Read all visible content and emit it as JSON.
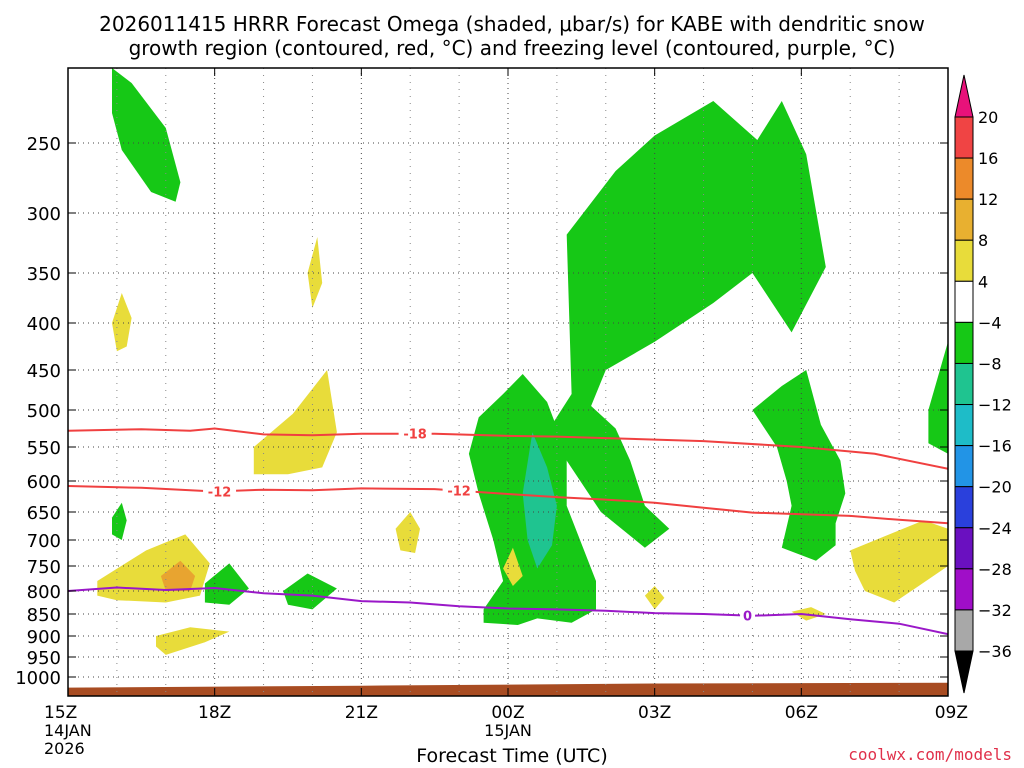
{
  "title_line1": "2026011415 HRRR Forecast Omega (shaded, μbar/s) for KABE with dendritic snow",
  "title_line2": "growth region (contoured, red, °C) and freezing level (contoured, purple, °C)",
  "credit": "coolwx.com/models",
  "chart_data": {
    "type": "time-height cross section (filled contour + line contours)",
    "xlabel": "Forecast Time (UTC)",
    "x_ticks": [
      {
        "hour": 0,
        "label": "15Z",
        "sub1": "14JAN",
        "sub2": "2026"
      },
      {
        "hour": 3,
        "label": "18Z"
      },
      {
        "hour": 6,
        "label": "21Z"
      },
      {
        "hour": 9,
        "label": "00Z",
        "sub1": "15JAN"
      },
      {
        "hour": 12,
        "label": "03Z"
      },
      {
        "hour": 15,
        "label": "06Z"
      },
      {
        "hour": 18,
        "label": "09Z"
      }
    ],
    "xlim_hours": [
      0,
      18
    ],
    "y_scale": "pressure (log-like)",
    "ylim_hPa": [
      1050,
      200
    ],
    "y_ticks": [
      250,
      300,
      350,
      400,
      450,
      500,
      550,
      600,
      650,
      700,
      750,
      800,
      850,
      900,
      950,
      1000
    ],
    "grid": true,
    "colorbar": {
      "levels": [
        20,
        16,
        12,
        8,
        4,
        -4,
        -8,
        -12,
        -16,
        -20,
        -24,
        -28,
        -32,
        -36
      ],
      "colors": [
        "#e8d43a",
        "#e8b030",
        "#ec8a2a",
        "#ee4040",
        "#e61a7a",
        "#ffffff",
        "#16c816",
        "#1fc4a0",
        "#22b4d8",
        "#2a7ee8",
        "#2a40dc",
        "#7a10c8",
        "#a010c8",
        "#a8a8a8"
      ],
      "bins": [
        {
          "range": ">20",
          "color": "#e8127a"
        },
        {
          "range": "16-20",
          "color": "#f04444"
        },
        {
          "range": "12-16",
          "color": "#ec8a2a"
        },
        {
          "range": "8-12",
          "color": "#e8b030"
        },
        {
          "range": "4-8",
          "color": "#e8dc3a"
        },
        {
          "range": "-4-4",
          "color": "#ffffff"
        },
        {
          "range": "-8--4",
          "color": "#16c816"
        },
        {
          "range": "-12--8",
          "color": "#1fc490"
        },
        {
          "range": "-16--12",
          "color": "#1ebcc8"
        },
        {
          "range": "-20--16",
          "color": "#2294e6"
        },
        {
          "range": "-24--20",
          "color": "#2a40dc"
        },
        {
          "range": "-28--24",
          "color": "#6a10c0"
        },
        {
          "range": "-32--28",
          "color": "#a00ec8"
        },
        {
          "range": "-36--32",
          "color": "#a8a8a8"
        },
        {
          "range": "<-36",
          "color": "#000000"
        }
      ]
    },
    "contours": [
      {
        "name": "-18",
        "color": "#f04040",
        "label": "-18",
        "label_hour": 7.1,
        "points": [
          [
            0,
            528
          ],
          [
            1.5,
            526
          ],
          [
            2.5,
            528
          ],
          [
            3,
            525
          ],
          [
            4,
            533
          ],
          [
            5,
            534
          ],
          [
            6,
            532
          ],
          [
            7.5,
            532
          ],
          [
            9,
            535
          ],
          [
            10,
            536
          ],
          [
            11,
            538
          ],
          [
            13,
            542
          ],
          [
            15,
            550
          ],
          [
            16.5,
            560
          ],
          [
            18,
            582
          ]
        ]
      },
      {
        "name": "-12",
        "color": "#f04040",
        "label": "-12",
        "label_hour": 3.1,
        "label2_hour": 8.0,
        "points": [
          [
            0,
            608
          ],
          [
            1.5,
            611
          ],
          [
            3,
            617
          ],
          [
            4,
            614
          ],
          [
            5,
            615
          ],
          [
            6,
            612
          ],
          [
            7.5,
            613
          ],
          [
            9,
            621
          ],
          [
            10,
            626
          ],
          [
            11,
            630
          ],
          [
            12,
            635
          ],
          [
            13,
            643
          ],
          [
            14,
            651
          ],
          [
            15,
            654
          ],
          [
            16,
            657
          ],
          [
            17,
            664
          ],
          [
            18,
            670
          ]
        ]
      },
      {
        "name": "0",
        "color": "#9a18c8",
        "label": "0",
        "label_hour": 13.9,
        "points": [
          [
            0,
            800
          ],
          [
            1,
            793
          ],
          [
            2,
            798
          ],
          [
            3,
            794
          ],
          [
            4,
            805
          ],
          [
            5,
            810
          ],
          [
            6,
            822
          ],
          [
            7,
            825
          ],
          [
            8,
            833
          ],
          [
            9,
            838
          ],
          [
            10,
            840
          ],
          [
            11,
            843
          ],
          [
            12,
            848
          ],
          [
            13,
            850
          ],
          [
            14,
            854
          ],
          [
            15,
            850
          ],
          [
            16,
            862
          ],
          [
            17,
            872
          ],
          [
            18,
            896
          ]
        ]
      }
    ],
    "terrain": {
      "color": "#a84c22",
      "top_hPa": [
        [
          0,
          1028
        ],
        [
          6,
          1023
        ],
        [
          12,
          1017
        ],
        [
          18,
          1015
        ]
      ]
    },
    "omega_regions": [
      {
        "value_bin": "-4 to -8",
        "color": "#16c816",
        "points": [
          [
            0.9,
            200
          ],
          [
            1.3,
            210
          ],
          [
            2.0,
            240
          ],
          [
            2.3,
            278
          ],
          [
            2.2,
            292
          ],
          [
            1.7,
            285
          ],
          [
            1.1,
            255
          ],
          [
            0.9,
            230
          ]
        ]
      },
      {
        "value_bin": "-4 to -8",
        "color": "#16c816",
        "points": [
          [
            10.2,
            318
          ],
          [
            11.2,
            270
          ],
          [
            12.0,
            245
          ],
          [
            13.2,
            222
          ],
          [
            14.1,
            248
          ],
          [
            14.6,
            222
          ],
          [
            15.1,
            258
          ],
          [
            15.5,
            345
          ],
          [
            14.8,
            410
          ],
          [
            14.0,
            350
          ],
          [
            13.2,
            380
          ],
          [
            12.0,
            420
          ],
          [
            11.0,
            450
          ],
          [
            10.7,
            495
          ],
          [
            11.2,
            525
          ],
          [
            11.5,
            570
          ],
          [
            11.8,
            640
          ],
          [
            12.3,
            680
          ],
          [
            11.8,
            715
          ],
          [
            10.9,
            650
          ],
          [
            10.2,
            570
          ],
          [
            9.8,
            530
          ],
          [
            10.3,
            480
          ]
        ]
      },
      {
        "value_bin": "-4 to -8",
        "color": "#16c816",
        "points": [
          [
            8.4,
            510
          ],
          [
            8.9,
            480
          ],
          [
            9.3,
            455
          ],
          [
            9.8,
            490
          ],
          [
            10.2,
            560
          ],
          [
            10.2,
            640
          ],
          [
            10.8,
            780
          ],
          [
            10.8,
            840
          ],
          [
            10.3,
            870
          ],
          [
            9.6,
            860
          ],
          [
            9.2,
            875
          ],
          [
            8.5,
            870
          ],
          [
            8.5,
            840
          ],
          [
            8.9,
            780
          ],
          [
            8.7,
            700
          ],
          [
            8.4,
            620
          ],
          [
            8.2,
            560
          ]
        ]
      },
      {
        "value_bin": "-4 to -8",
        "color": "#16c816",
        "points": [
          [
            14.0,
            500
          ],
          [
            14.6,
            470
          ],
          [
            15.1,
            450
          ],
          [
            15.4,
            520
          ],
          [
            15.8,
            570
          ],
          [
            15.9,
            620
          ],
          [
            15.7,
            670
          ],
          [
            15.7,
            710
          ],
          [
            15.3,
            740
          ],
          [
            14.6,
            715
          ],
          [
            14.8,
            640
          ],
          [
            14.7,
            600
          ],
          [
            14.5,
            550
          ]
        ]
      },
      {
        "value_bin": "-4 to -8",
        "color": "#16c816",
        "points": [
          [
            17.6,
            500
          ],
          [
            18.0,
            420
          ],
          [
            18.0,
            560
          ],
          [
            17.6,
            545
          ]
        ]
      },
      {
        "value_bin": "-4 to -8",
        "color": "#16c816",
        "points": [
          [
            2.8,
            785
          ],
          [
            3.3,
            745
          ],
          [
            3.7,
            795
          ],
          [
            3.3,
            830
          ],
          [
            2.8,
            825
          ]
        ]
      },
      {
        "value_bin": "-4 to -8",
        "color": "#16c816",
        "points": [
          [
            4.4,
            800
          ],
          [
            4.9,
            765
          ],
          [
            5.5,
            795
          ],
          [
            5.0,
            840
          ],
          [
            4.5,
            830
          ]
        ]
      },
      {
        "value_bin": "-4 to -8",
        "color": "#16c816",
        "points": [
          [
            0.9,
            660
          ],
          [
            1.1,
            635
          ],
          [
            1.2,
            665
          ],
          [
            1.1,
            700
          ],
          [
            0.9,
            690
          ]
        ]
      },
      {
        "value_bin": "-8 to -12",
        "color": "#1fc490",
        "points": [
          [
            9.5,
            530
          ],
          [
            9.8,
            580
          ],
          [
            10.0,
            640
          ],
          [
            9.9,
            710
          ],
          [
            9.6,
            755
          ],
          [
            9.4,
            700
          ],
          [
            9.3,
            620
          ]
        ]
      },
      {
        "value_bin": "4 to 8",
        "color": "#e8dc3a",
        "points": [
          [
            0.9,
            400
          ],
          [
            1.1,
            370
          ],
          [
            1.3,
            395
          ],
          [
            1.2,
            425
          ],
          [
            1.0,
            430
          ]
        ]
      },
      {
        "value_bin": "4 to 8",
        "color": "#e8dc3a",
        "points": [
          [
            4.9,
            350
          ],
          [
            5.1,
            320
          ],
          [
            5.2,
            360
          ],
          [
            5.0,
            385
          ]
        ]
      },
      {
        "value_bin": "4 to 8",
        "color": "#e8dc3a",
        "points": [
          [
            3.8,
            550
          ],
          [
            4.6,
            505
          ],
          [
            5.3,
            450
          ],
          [
            5.5,
            530
          ],
          [
            5.2,
            580
          ],
          [
            4.5,
            590
          ],
          [
            3.8,
            590
          ]
        ]
      },
      {
        "value_bin": "4 to 8",
        "color": "#e8dc3a",
        "points": [
          [
            0.6,
            780
          ],
          [
            1.6,
            720
          ],
          [
            2.4,
            690
          ],
          [
            2.9,
            745
          ],
          [
            2.7,
            810
          ],
          [
            2.0,
            825
          ],
          [
            1.0,
            820
          ],
          [
            0.6,
            810
          ]
        ]
      },
      {
        "value_bin": "4 to 8",
        "color": "#e8dc3a",
        "points": [
          [
            1.8,
            900
          ],
          [
            2.5,
            880
          ],
          [
            3.3,
            890
          ],
          [
            2.8,
            915
          ],
          [
            2.0,
            945
          ],
          [
            1.8,
            925
          ]
        ]
      },
      {
        "value_bin": "4 to 8",
        "color": "#e8dc3a",
        "points": [
          [
            6.7,
            680
          ],
          [
            7.0,
            650
          ],
          [
            7.2,
            680
          ],
          [
            7.1,
            725
          ],
          [
            6.8,
            720
          ]
        ]
      },
      {
        "value_bin": "4 to 8",
        "color": "#e8dc3a",
        "points": [
          [
            8.9,
            755
          ],
          [
            9.1,
            715
          ],
          [
            9.3,
            770
          ],
          [
            9.1,
            790
          ]
        ]
      },
      {
        "value_bin": "4 to 8",
        "color": "#e8dc3a",
        "points": [
          [
            11.8,
            810
          ],
          [
            12.0,
            790
          ],
          [
            12.2,
            815
          ],
          [
            12.0,
            840
          ]
        ]
      },
      {
        "value_bin": "4 to 8",
        "color": "#e8dc3a",
        "points": [
          [
            16.0,
            720
          ],
          [
            16.8,
            690
          ],
          [
            17.5,
            665
          ],
          [
            18.0,
            680
          ],
          [
            18.0,
            750
          ],
          [
            17.4,
            790
          ],
          [
            16.9,
            825
          ],
          [
            16.3,
            800
          ],
          [
            16.1,
            760
          ]
        ]
      },
      {
        "value_bin": "4 to 8",
        "color": "#e8dc3a",
        "points": [
          [
            14.8,
            845
          ],
          [
            15.2,
            835
          ],
          [
            15.5,
            850
          ],
          [
            15.1,
            865
          ]
        ]
      },
      {
        "value_bin": "8 to 12",
        "color": "#e8a430",
        "points": [
          [
            1.9,
            770
          ],
          [
            2.3,
            740
          ],
          [
            2.6,
            770
          ],
          [
            2.5,
            800
          ],
          [
            2.0,
            800
          ]
        ]
      }
    ]
  }
}
